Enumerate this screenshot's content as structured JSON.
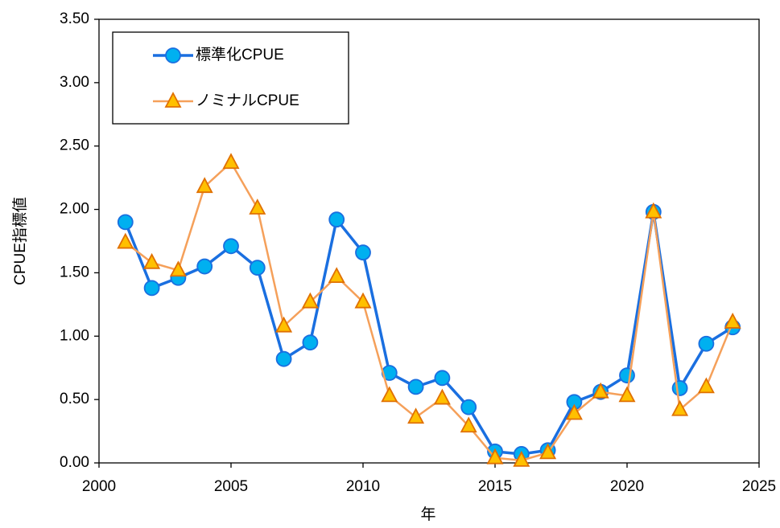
{
  "chart_data": {
    "type": "line",
    "x_label": "年",
    "y_label": "CPUE指標値",
    "x": [
      2001,
      2002,
      2003,
      2004,
      2005,
      2006,
      2007,
      2008,
      2009,
      2010,
      2011,
      2012,
      2013,
      2014,
      2015,
      2016,
      2017,
      2018,
      2019,
      2020,
      2021,
      2022,
      2023,
      2024
    ],
    "series": [
      {
        "name": "標準化CPUE",
        "color": "#1a6fe0",
        "marker": "circle",
        "marker_fill": "#00b0f0",
        "values": [
          1.9,
          1.38,
          1.46,
          1.55,
          1.71,
          1.54,
          0.82,
          0.95,
          1.92,
          1.66,
          0.71,
          0.6,
          0.67,
          0.44,
          0.09,
          0.07,
          0.1,
          0.48,
          0.56,
          0.69,
          1.98,
          0.59,
          0.94,
          1.07
        ]
      },
      {
        "name": "ノミナルCPUE",
        "color": "#f5a05a",
        "marker": "triangle",
        "marker_fill": "#ffc000",
        "values": [
          1.74,
          1.58,
          1.52,
          2.18,
          2.37,
          2.01,
          1.08,
          1.27,
          1.47,
          1.27,
          0.53,
          0.36,
          0.51,
          0.29,
          0.04,
          0.02,
          0.08,
          0.39,
          0.56,
          0.53,
          1.98,
          0.42,
          0.6,
          1.11
        ]
      }
    ],
    "xlim": [
      2000,
      2025
    ],
    "xticks": [
      2000,
      2005,
      2010,
      2015,
      2020,
      2025
    ],
    "ylim": [
      0,
      3.5
    ],
    "yticks": [
      {
        "value": 0,
        "label": "0.00"
      },
      {
        "value": 0.5,
        "label": "0.50"
      },
      {
        "value": 1,
        "label": "1.00"
      },
      {
        "value": 1.5,
        "label": "1.50"
      },
      {
        "value": 2,
        "label": "2.00"
      },
      {
        "value": 2.5,
        "label": "2.50"
      },
      {
        "value": 3,
        "label": "3.00"
      },
      {
        "value": 3.5,
        "label": "3.50"
      }
    ],
    "grid": false,
    "legend": "upper left"
  }
}
